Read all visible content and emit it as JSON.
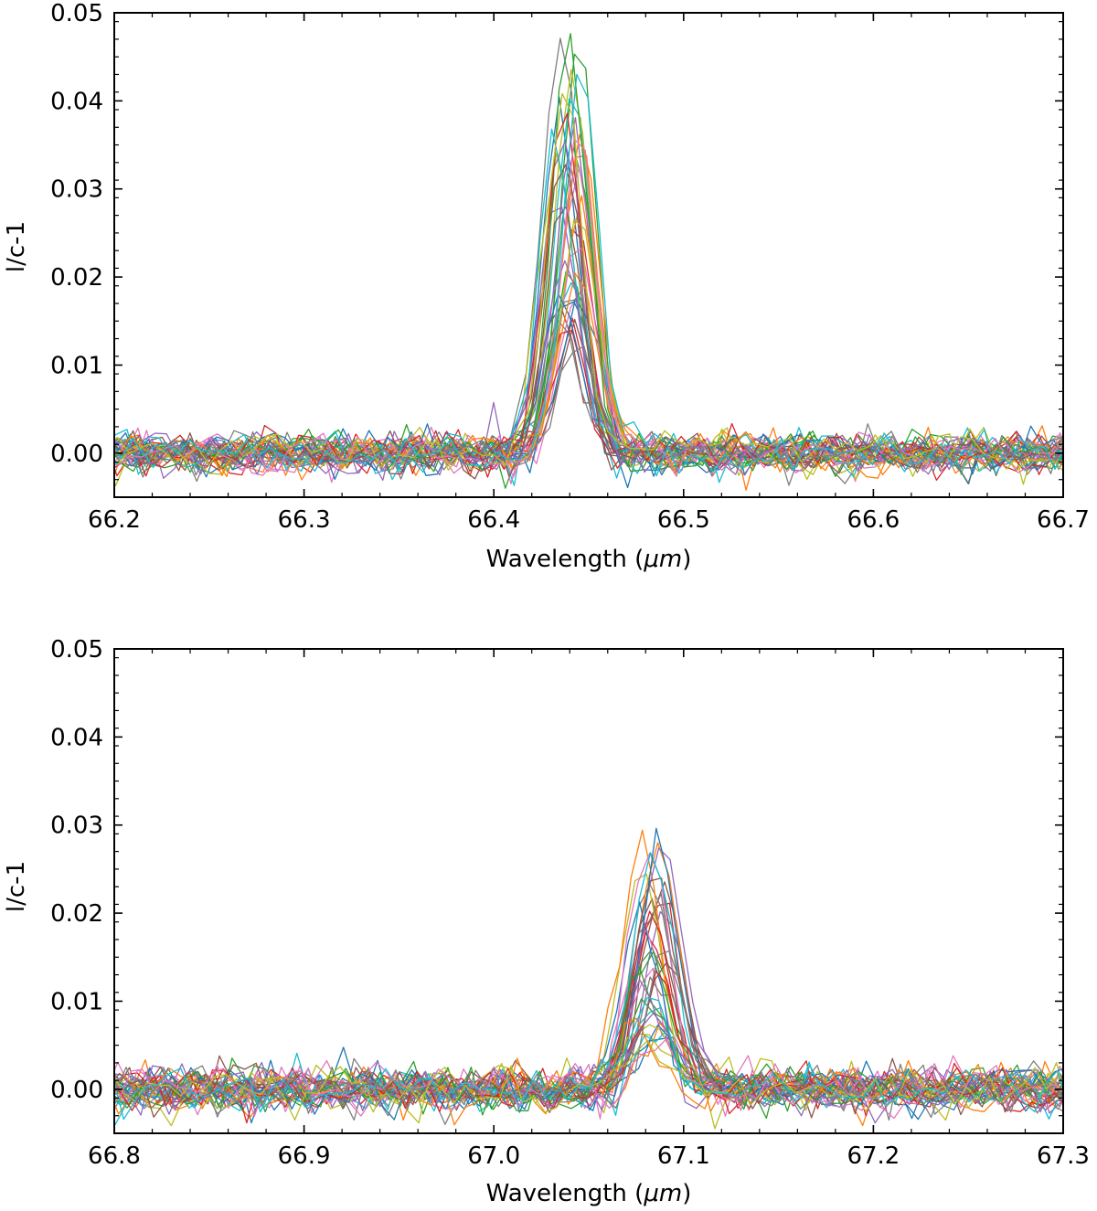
{
  "chart_data": [
    {
      "type": "line",
      "name": "top-panel",
      "xlabel": "Wavelength (μm)",
      "xlabel_prefix": "Wavelength (",
      "xlabel_unit": "μm",
      "xlabel_suffix": ")",
      "ylabel": "l/c-1",
      "xlim": [
        66.2,
        66.7
      ],
      "ylim": [
        -0.005,
        0.05
      ],
      "xticks": [
        66.2,
        66.3,
        66.4,
        66.5,
        66.6,
        66.7
      ],
      "xtick_labels": [
        "66.2",
        "66.3",
        "66.4",
        "66.5",
        "66.6",
        "66.7"
      ],
      "yticks": [
        0.0,
        0.01,
        0.02,
        0.03,
        0.04,
        0.05
      ],
      "ytick_labels": [
        "0.00",
        "0.01",
        "0.02",
        "0.03",
        "0.04",
        "0.05"
      ],
      "line_center": 66.439,
      "line_fwhm": 0.022,
      "series_count": 40,
      "peak_range": [
        0.012,
        0.05
      ],
      "noise_level": 0.0012,
      "sampling_step": 0.006
    },
    {
      "type": "line",
      "name": "bottom-panel",
      "xlabel": "Wavelength (μm)",
      "xlabel_prefix": "Wavelength (",
      "xlabel_unit": "μm",
      "xlabel_suffix": ")",
      "ylabel": "l/c-1",
      "xlim": [
        66.8,
        67.3
      ],
      "ylim": [
        -0.005,
        0.05
      ],
      "xticks": [
        66.8,
        66.9,
        67.0,
        67.1,
        67.2,
        67.3
      ],
      "xtick_labels": [
        "66.8",
        "66.9",
        "67.0",
        "67.1",
        "67.2",
        "67.3"
      ],
      "yticks": [
        0.0,
        0.01,
        0.02,
        0.03,
        0.04,
        0.05
      ],
      "ytick_labels": [
        "0.00",
        "0.01",
        "0.02",
        "0.03",
        "0.04",
        "0.05"
      ],
      "line_center": 67.084,
      "line_fwhm": 0.024,
      "series_count": 40,
      "peak_range": [
        0.004,
        0.03
      ],
      "noise_level": 0.0013,
      "sampling_step": 0.006
    }
  ],
  "colors": [
    "#1f77b4",
    "#ff7f0e",
    "#2ca02c",
    "#d62728",
    "#9467bd",
    "#8c564b",
    "#e377c2",
    "#7f7f7f",
    "#bcbd22",
    "#17becf"
  ]
}
